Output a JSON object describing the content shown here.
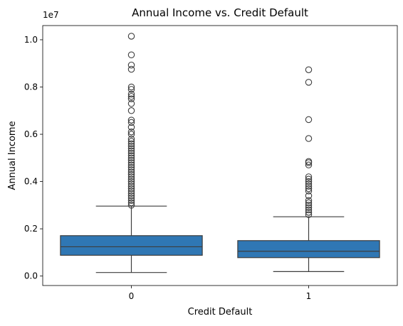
{
  "chart_data": {
    "type": "box",
    "title": "Annual Income vs. Credit Default",
    "xlabel": "Credit Default",
    "ylabel": "Annual Income",
    "y_scale_label": "1e7",
    "categories": [
      "0",
      "1"
    ],
    "y_ticks": [
      0.0,
      0.2,
      0.4,
      0.6,
      0.8,
      1.0
    ],
    "ylim": [
      -0.04,
      1.06
    ],
    "box_color": "#2f77b4",
    "boxes": [
      {
        "category": "0",
        "whisker_low": 0.015,
        "q1": 0.088,
        "median": 0.124,
        "q3": 0.171,
        "whisker_high": 0.296,
        "outliers": [
          1.015,
          0.936,
          0.893,
          0.875,
          0.8,
          0.79,
          0.77,
          0.76,
          0.75,
          0.73,
          0.7,
          0.66,
          0.65,
          0.63,
          0.61,
          0.6,
          0.58,
          0.57,
          0.56,
          0.55,
          0.54,
          0.53,
          0.52,
          0.51,
          0.5,
          0.49,
          0.48,
          0.47,
          0.46,
          0.45,
          0.44,
          0.43,
          0.42,
          0.41,
          0.4,
          0.39,
          0.38,
          0.37,
          0.36,
          0.35,
          0.34,
          0.33,
          0.32,
          0.31,
          0.3
        ]
      },
      {
        "category": "1",
        "whisker_low": 0.019,
        "q1": 0.078,
        "median": 0.105,
        "q3": 0.15,
        "whisker_high": 0.251,
        "outliers": [
          0.873,
          0.82,
          0.662,
          0.582,
          0.485,
          0.48,
          0.47,
          0.42,
          0.41,
          0.4,
          0.39,
          0.38,
          0.37,
          0.36,
          0.34,
          0.32,
          0.31,
          0.3,
          0.29,
          0.28,
          0.27,
          0.26
        ]
      }
    ],
    "grid": false,
    "legend": "none"
  }
}
